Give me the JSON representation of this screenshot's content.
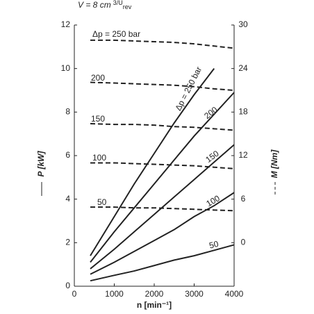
{
  "chart_data": {
    "type": "line",
    "title": {
      "text": "V = 8 cm",
      "sup": "3/U",
      "sub": "rev"
    },
    "x_label": "n [min⁻¹]",
    "y_label": "P [kW]",
    "y2_label": "M [Nm]",
    "x": [
      400,
      1000,
      1500,
      2000,
      2500,
      3000,
      3500,
      4000
    ],
    "xlim": [
      0,
      4000
    ],
    "xticks": [
      0,
      1000,
      2000,
      3000,
      4000
    ],
    "ylim": [
      0,
      12
    ],
    "yticks": [
      0,
      2,
      4,
      6,
      8,
      10,
      12
    ],
    "y2lim": [
      -6,
      30
    ],
    "y2ticks": [
      0,
      6,
      12,
      18,
      24,
      30
    ],
    "grid": false,
    "series": [
      {
        "name": "Δp = 250 bar",
        "color": "#222222",
        "style": "solid",
        "values": [
          1.4,
          3.2,
          4.7,
          6.1,
          7.5,
          8.8,
          10.0,
          null
        ]
      },
      {
        "name": "200",
        "color": "#222222",
        "style": "solid",
        "values": [
          1.1,
          2.5,
          3.6,
          4.7,
          5.8,
          6.9,
          7.9,
          8.9
        ]
      },
      {
        "name": "150",
        "color": "#222222",
        "style": "solid",
        "values": [
          0.8,
          1.7,
          2.5,
          3.3,
          4.1,
          4.9,
          5.7,
          6.5
        ]
      },
      {
        "name": "100",
        "color": "#222222",
        "style": "solid",
        "values": [
          0.55,
          1.1,
          1.6,
          2.1,
          2.6,
          3.2,
          3.7,
          4.3
        ]
      },
      {
        "name": "50",
        "color": "#222222",
        "style": "solid",
        "values": [
          0.25,
          0.5,
          0.7,
          0.95,
          1.2,
          1.4,
          1.65,
          1.9
        ]
      },
      {
        "name": "Δp = 250 bar",
        "color": "#222222",
        "style": "dashed",
        "axis": "y2",
        "values": [
          27.9,
          27.9,
          27.8,
          27.7,
          27.6,
          27.4,
          27.1,
          26.8
        ]
      },
      {
        "name": "200",
        "color": "#222222",
        "style": "dashed",
        "axis": "y2",
        "values": [
          22.1,
          22.0,
          21.9,
          21.8,
          21.7,
          21.5,
          21.2,
          21.0
        ]
      },
      {
        "name": "150",
        "color": "#222222",
        "style": "dashed",
        "axis": "y2",
        "values": [
          16.4,
          16.3,
          16.3,
          16.2,
          16.0,
          15.9,
          15.7,
          15.5
        ]
      },
      {
        "name": "100",
        "color": "#222222",
        "style": "dashed",
        "axis": "y2",
        "values": [
          11.0,
          11.0,
          10.9,
          10.8,
          10.7,
          10.6,
          10.4,
          10.2
        ]
      },
      {
        "name": "50",
        "color": "#222222",
        "style": "dashed",
        "axis": "y2",
        "values": [
          4.9,
          4.9,
          4.8,
          4.8,
          4.7,
          4.6,
          4.5,
          4.4
        ]
      }
    ]
  }
}
